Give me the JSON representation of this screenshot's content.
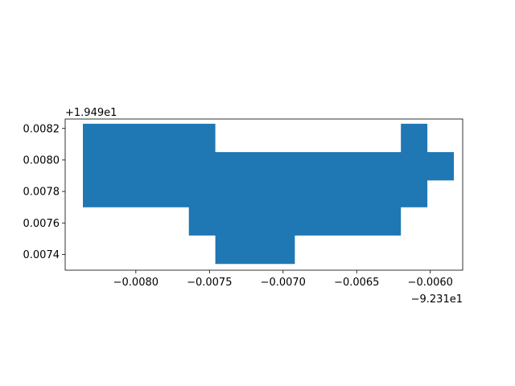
{
  "chart_data": {
    "type": "area",
    "title": "",
    "xlabel": "",
    "ylabel": "",
    "x_offset_text": "−9.231e1",
    "y_offset_text": "+1.949e1",
    "xlim": [
      -0.00848,
      -0.00578
    ],
    "ylim": [
      0.0073,
      0.00826
    ],
    "x_ticks": [
      -0.008,
      -0.0075,
      -0.007,
      -0.0065,
      -0.006
    ],
    "x_tick_labels": [
      "−0.0080",
      "−0.0075",
      "−0.0070",
      "−0.0065",
      "−0.0060"
    ],
    "y_ticks": [
      0.0074,
      0.0076,
      0.0078,
      0.008,
      0.0082
    ],
    "y_tick_labels": [
      "0.0074",
      "0.0076",
      "0.0078",
      "0.0080",
      "0.0082"
    ],
    "grid": false,
    "series": [
      {
        "color": "#1f77b4",
        "polygon": [
          [
            -0.00836,
            0.00823
          ],
          [
            -0.00746,
            0.00823
          ],
          [
            -0.00746,
            0.00805
          ],
          [
            -0.0062,
            0.00805
          ],
          [
            -0.0062,
            0.00823
          ],
          [
            -0.00602,
            0.00823
          ],
          [
            -0.00602,
            0.00805
          ],
          [
            -0.00584,
            0.00805
          ],
          [
            -0.00584,
            0.00787
          ],
          [
            -0.00602,
            0.00787
          ],
          [
            -0.00602,
            0.0077
          ],
          [
            -0.0062,
            0.0077
          ],
          [
            -0.0062,
            0.00752
          ],
          [
            -0.00692,
            0.00752
          ],
          [
            -0.00692,
            0.00734
          ],
          [
            -0.00746,
            0.00734
          ],
          [
            -0.00746,
            0.00752
          ],
          [
            -0.00764,
            0.00752
          ],
          [
            -0.00764,
            0.0077
          ],
          [
            -0.00836,
            0.0077
          ]
        ]
      }
    ]
  }
}
